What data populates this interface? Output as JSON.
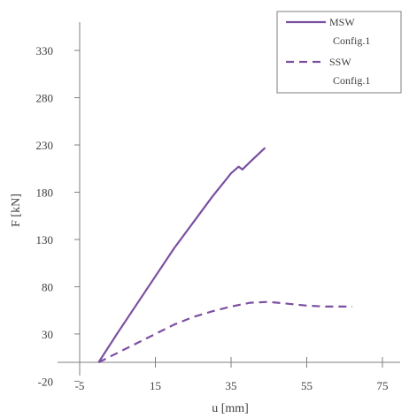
{
  "chart_data": {
    "type": "line",
    "title": "",
    "xlabel": "u [mm]",
    "ylabel": "F [kN]",
    "xlim": [
      -5,
      75
    ],
    "ylim": [
      -20,
      360
    ],
    "x_ticks": [
      -5,
      15,
      35,
      55,
      75
    ],
    "x_tick_labels": [
      "-5",
      "15",
      "35",
      "55",
      "75"
    ],
    "y_ticks": [
      -20,
      30,
      80,
      130,
      180,
      230,
      280,
      330
    ],
    "y_tick_labels": [
      "-20",
      "30",
      "80",
      "130",
      "180",
      "230",
      "280",
      "330"
    ],
    "grid": false,
    "legend_position": "top-right",
    "series": [
      {
        "name": "MSW Config.1",
        "color": "#7b4fa0",
        "style": "solid",
        "x": [
          0,
          5,
          10,
          15,
          20,
          25,
          30,
          35,
          37,
          38,
          40,
          44
        ],
        "y": [
          0,
          31,
          61,
          91,
          121,
          148,
          175,
          200,
          207,
          204,
          212,
          227
        ]
      },
      {
        "name": "SSW Config.1",
        "color": "#7b4fa0",
        "style": "dashed",
        "x": [
          0,
          5,
          10,
          15,
          20,
          25,
          30,
          35,
          40,
          45,
          50,
          55,
          60,
          67
        ],
        "y": [
          0,
          10,
          20,
          30,
          40,
          48,
          54,
          59,
          63,
          64,
          62,
          60,
          59,
          59
        ]
      }
    ]
  }
}
